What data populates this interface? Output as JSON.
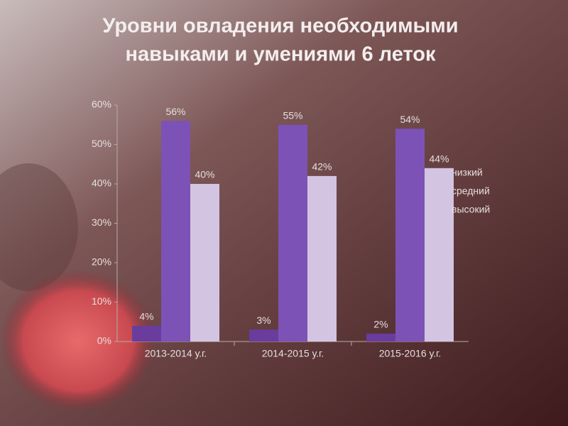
{
  "chart_data": {
    "type": "bar",
    "title": [
      "Уровни овладения необходимыми",
      "навыками и умениями 6 леток"
    ],
    "categories": [
      "2013-2014 у.г.",
      "2014-2015 у.г.",
      "2015-2016 у.г."
    ],
    "series": [
      {
        "name": "низкий",
        "color": "#6a3c9e",
        "values": [
          4,
          3,
          2
        ],
        "value_labels": [
          "4%",
          "3%",
          "2%"
        ]
      },
      {
        "name": "средний",
        "color": "#7d52b6",
        "values": [
          56,
          55,
          54
        ],
        "value_labels": [
          "56%",
          "55%",
          "54%"
        ]
      },
      {
        "name": "высокий",
        "color": "#d3c5e2",
        "values": [
          40,
          42,
          44
        ],
        "value_labels": [
          "40%",
          "42%",
          "44%"
        ]
      }
    ],
    "ylim": [
      0,
      60
    ],
    "yticks": [
      {
        "value": 0,
        "label": "0%"
      },
      {
        "value": 10,
        "label": "10%"
      },
      {
        "value": 20,
        "label": "20%"
      },
      {
        "value": 30,
        "label": "30%"
      },
      {
        "value": 40,
        "label": "40%"
      },
      {
        "value": 50,
        "label": "50%"
      },
      {
        "value": 60,
        "label": "60%"
      }
    ],
    "grid": false,
    "legend": "right"
  }
}
